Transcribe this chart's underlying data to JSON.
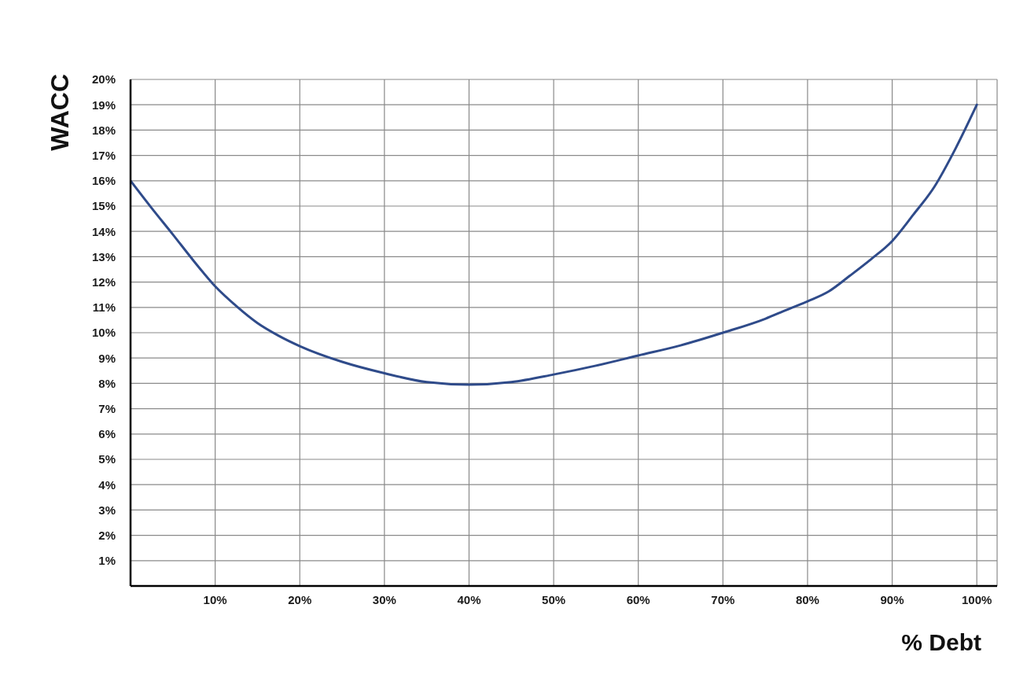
{
  "chart_data": {
    "type": "line",
    "xlabel": "% Debt",
    "ylabel": "WACC",
    "x": [
      0,
      2.5,
      5,
      7.5,
      10,
      12.5,
      15,
      17.5,
      20,
      25,
      30,
      35,
      40,
      45,
      50,
      55,
      60,
      65,
      70,
      75,
      77.5,
      80,
      82.5,
      85,
      87.5,
      90,
      92.5,
      95,
      97.5,
      100
    ],
    "values": [
      16,
      14.92,
      13.88,
      12.82,
      11.83,
      11.05,
      10.38,
      9.88,
      9.47,
      8.85,
      8.4,
      8.05,
      7.95,
      8.05,
      8.35,
      8.7,
      9.1,
      9.5,
      10.0,
      10.55,
      10.9,
      11.24,
      11.63,
      12.25,
      12.9,
      13.62,
      14.66,
      15.77,
      17.28,
      19
    ],
    "color": "#2f4b8a",
    "xlim": [
      0,
      102.4
    ],
    "xticks": [
      {
        "value": 10,
        "label": "10%"
      },
      {
        "value": 20,
        "label": "20%"
      },
      {
        "value": 30,
        "label": "30%"
      },
      {
        "value": 40,
        "label": "40%"
      },
      {
        "value": 50,
        "label": "50%"
      },
      {
        "value": 60,
        "label": "60%"
      },
      {
        "value": 70,
        "label": "70%"
      },
      {
        "value": 80,
        "label": "80%"
      },
      {
        "value": 90,
        "label": "90%"
      },
      {
        "value": 100,
        "label": "100%"
      }
    ],
    "ylim": [
      0,
      20
    ],
    "yticks": [
      {
        "value": 1,
        "label": "1%"
      },
      {
        "value": 2,
        "label": "2%"
      },
      {
        "value": 3,
        "label": "3%"
      },
      {
        "value": 4,
        "label": "4%"
      },
      {
        "value": 5,
        "label": "5%"
      },
      {
        "value": 6,
        "label": "6%"
      },
      {
        "value": 7,
        "label": "7%"
      },
      {
        "value": 8,
        "label": "8%"
      },
      {
        "value": 9,
        "label": "9%"
      },
      {
        "value": 10,
        "label": "10%"
      },
      {
        "value": 11,
        "label": "11%"
      },
      {
        "value": 12,
        "label": "12%"
      },
      {
        "value": 13,
        "label": "13%"
      },
      {
        "value": 14,
        "label": "14%"
      },
      {
        "value": 15,
        "label": "15%"
      },
      {
        "value": 16,
        "label": "16%"
      },
      {
        "value": 17,
        "label": "17%"
      },
      {
        "value": 18,
        "label": "18%"
      },
      {
        "value": 19,
        "label": "19%"
      },
      {
        "value": 20,
        "label": "20%"
      }
    ],
    "grid": true
  }
}
